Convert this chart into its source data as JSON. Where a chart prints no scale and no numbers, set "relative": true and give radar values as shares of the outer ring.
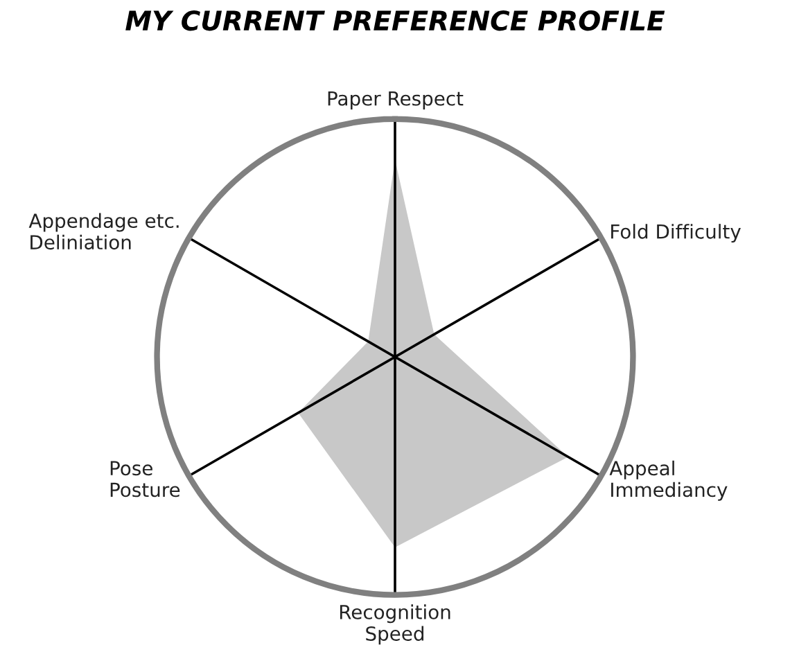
{
  "chart_data": {
    "type": "radar",
    "title": "MY CURRENT PREFERENCE PROFILE",
    "relative": true,
    "categories": [
      "Paper Respect",
      "Fold Difficulty",
      "Appeal\nImmediancy",
      "Recognition\nSpeed",
      "Pose\nPosture",
      "Appendage etc.\nDeliniation"
    ],
    "series": [
      {
        "color": "#c8c8c8",
        "values": [
          0.83,
          0.19,
          0.84,
          0.8,
          0.47,
          0.13
        ]
      }
    ]
  }
}
